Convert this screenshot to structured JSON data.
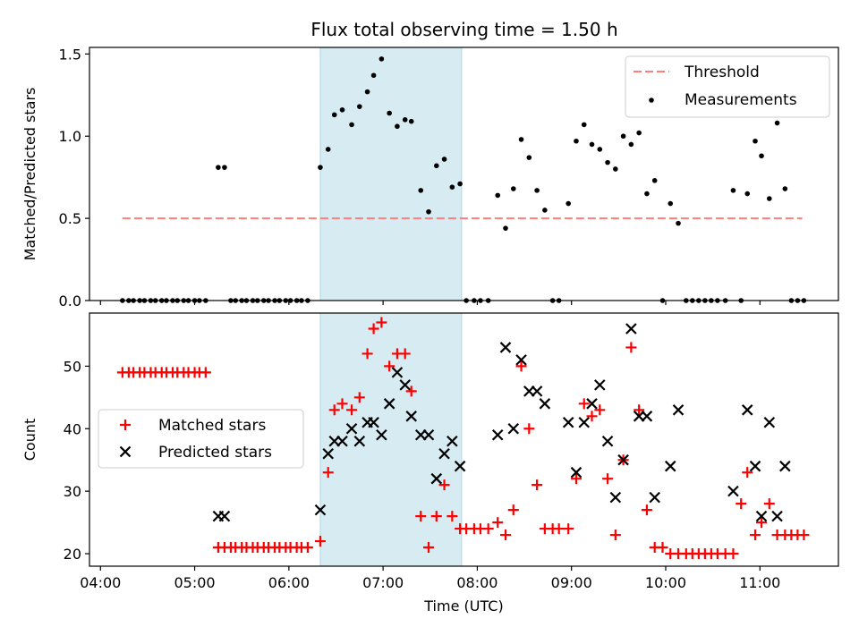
{
  "title": "Flux total observing time = 1.50 h",
  "colors": {
    "threshold": "#ff7f7f",
    "shade": "#add8e6",
    "matched": "#ff0000",
    "predicted": "#000000",
    "measurements": "#000000"
  },
  "chart_data": [
    {
      "type": "scatter",
      "ylabel": "Matched/Predicted stars",
      "xlabel": "",
      "xlim": [
        "03:53",
        "11:50"
      ],
      "ylim": [
        0,
        1.54
      ],
      "yticks": [
        0.0,
        0.5,
        1.0,
        1.5
      ],
      "ytick_labels": [
        "0.0",
        "0.5",
        "1.0",
        "1.5"
      ],
      "xticks": [
        "04:00",
        "05:00",
        "06:00",
        "07:00",
        "08:00",
        "09:00",
        "10:00",
        "11:00"
      ],
      "shaded_interval": [
        "06:20",
        "07:50"
      ],
      "legend_position": "upper right",
      "legend": [
        "Threshold",
        "Measurements"
      ],
      "threshold": {
        "name": "Threshold",
        "y": 0.5,
        "x_range": [
          "04:14",
          "11:27"
        ],
        "style": "dashed"
      },
      "measurements": {
        "name": "Measurements",
        "points": [
          [
            "04:14",
            0
          ],
          [
            "04:18",
            0
          ],
          [
            "04:21",
            0
          ],
          [
            "04:25",
            0
          ],
          [
            "04:28",
            0
          ],
          [
            "04:32",
            0
          ],
          [
            "04:35",
            0
          ],
          [
            "04:39",
            0
          ],
          [
            "04:42",
            0
          ],
          [
            "04:46",
            0
          ],
          [
            "04:49",
            0
          ],
          [
            "04:53",
            0
          ],
          [
            "04:56",
            0
          ],
          [
            "05:00",
            0
          ],
          [
            "05:03",
            0
          ],
          [
            "05:07",
            0
          ],
          [
            "05:15",
            0.81
          ],
          [
            "05:19",
            0.81
          ],
          [
            "05:23",
            0
          ],
          [
            "05:26",
            0
          ],
          [
            "05:30",
            0
          ],
          [
            "05:33",
            0
          ],
          [
            "05:37",
            0
          ],
          [
            "05:40",
            0
          ],
          [
            "05:44",
            0
          ],
          [
            "05:47",
            0
          ],
          [
            "05:51",
            0
          ],
          [
            "05:54",
            0
          ],
          [
            "05:58",
            0
          ],
          [
            "06:01",
            0
          ],
          [
            "06:05",
            0
          ],
          [
            "06:08",
            0
          ],
          [
            "06:12",
            0
          ],
          [
            "06:20",
            0.81
          ],
          [
            "06:25",
            0.92
          ],
          [
            "06:29",
            1.13
          ],
          [
            "06:34",
            1.16
          ],
          [
            "06:40",
            1.07
          ],
          [
            "06:45",
            1.18
          ],
          [
            "06:50",
            1.27
          ],
          [
            "06:54",
            1.37
          ],
          [
            "06:59",
            1.47
          ],
          [
            "07:04",
            1.14
          ],
          [
            "07:09",
            1.06
          ],
          [
            "07:14",
            1.1
          ],
          [
            "07:18",
            1.09
          ],
          [
            "07:24",
            0.67
          ],
          [
            "07:29",
            0.54
          ],
          [
            "07:34",
            0.82
          ],
          [
            "07:39",
            0.86
          ],
          [
            "07:44",
            0.69
          ],
          [
            "07:49",
            0.71
          ],
          [
            "07:53",
            0
          ],
          [
            "07:58",
            0
          ],
          [
            "08:02",
            0
          ],
          [
            "08:07",
            0
          ],
          [
            "08:13",
            0.64
          ],
          [
            "08:18",
            0.44
          ],
          [
            "08:23",
            0.68
          ],
          [
            "08:28",
            0.98
          ],
          [
            "08:33",
            0.87
          ],
          [
            "08:38",
            0.67
          ],
          [
            "08:43",
            0.55
          ],
          [
            "08:48",
            0
          ],
          [
            "08:52",
            0
          ],
          [
            "08:58",
            0.59
          ],
          [
            "09:03",
            0.97
          ],
          [
            "09:08",
            1.07
          ],
          [
            "09:13",
            0.95
          ],
          [
            "09:18",
            0.92
          ],
          [
            "09:23",
            0.84
          ],
          [
            "09:28",
            0.8
          ],
          [
            "09:33",
            1.0
          ],
          [
            "09:38",
            0.95
          ],
          [
            "09:43",
            1.02
          ],
          [
            "09:48",
            0.65
          ],
          [
            "09:53",
            0.73
          ],
          [
            "10:03",
            0.59
          ],
          [
            "10:08",
            0.47
          ],
          [
            "09:58",
            0
          ],
          [
            "10:13",
            0
          ],
          [
            "10:17",
            0
          ],
          [
            "10:21",
            0
          ],
          [
            "10:25",
            0
          ],
          [
            "10:29",
            0
          ],
          [
            "10:33",
            0
          ],
          [
            "10:38",
            0
          ],
          [
            "10:43",
            0.67
          ],
          [
            "10:48",
            0
          ],
          [
            "10:52",
            0.65
          ],
          [
            "10:57",
            0.97
          ],
          [
            "11:01",
            0.88
          ],
          [
            "11:06",
            0.62
          ],
          [
            "11:11",
            1.08
          ],
          [
            "11:16",
            0.68
          ],
          [
            "11:20",
            0
          ],
          [
            "11:24",
            0
          ],
          [
            "11:28",
            0
          ]
        ]
      }
    },
    {
      "type": "scatter",
      "ylabel": "Count",
      "xlabel": "Time (UTC)",
      "xlim": [
        "03:53",
        "11:50"
      ],
      "ylim": [
        18.0,
        58.5
      ],
      "yticks": [
        20,
        30,
        40,
        50
      ],
      "ytick_labels": [
        "20",
        "30",
        "40",
        "50"
      ],
      "xticks": [
        "04:00",
        "05:00",
        "06:00",
        "07:00",
        "08:00",
        "09:00",
        "10:00",
        "11:00"
      ],
      "xtick_labels": [
        "04:00",
        "05:00",
        "06:00",
        "07:00",
        "08:00",
        "09:00",
        "10:00",
        "11:00"
      ],
      "shaded_interval": [
        "06:20",
        "07:50"
      ],
      "legend_position": "center left",
      "legend": [
        "Matched stars",
        "Predicted stars"
      ],
      "series": [
        {
          "name": "Matched stars",
          "marker": "plus",
          "points": [
            [
              "04:14",
              49
            ],
            [
              "04:18",
              49
            ],
            [
              "04:21",
              49
            ],
            [
              "04:25",
              49
            ],
            [
              "04:28",
              49
            ],
            [
              "04:32",
              49
            ],
            [
              "04:35",
              49
            ],
            [
              "04:39",
              49
            ],
            [
              "04:42",
              49
            ],
            [
              "04:46",
              49
            ],
            [
              "04:49",
              49
            ],
            [
              "04:53",
              49
            ],
            [
              "04:56",
              49
            ],
            [
              "05:00",
              49
            ],
            [
              "05:03",
              49
            ],
            [
              "05:07",
              49
            ],
            [
              "05:15",
              21
            ],
            [
              "05:19",
              21
            ],
            [
              "05:23",
              21
            ],
            [
              "05:26",
              21
            ],
            [
              "05:30",
              21
            ],
            [
              "05:33",
              21
            ],
            [
              "05:37",
              21
            ],
            [
              "05:40",
              21
            ],
            [
              "05:44",
              21
            ],
            [
              "05:47",
              21
            ],
            [
              "05:51",
              21
            ],
            [
              "05:54",
              21
            ],
            [
              "05:58",
              21
            ],
            [
              "06:01",
              21
            ],
            [
              "06:05",
              21
            ],
            [
              "06:08",
              21
            ],
            [
              "06:12",
              21
            ],
            [
              "06:20",
              22
            ],
            [
              "06:25",
              33
            ],
            [
              "06:29",
              43
            ],
            [
              "06:34",
              44
            ],
            [
              "06:40",
              43
            ],
            [
              "06:45",
              45
            ],
            [
              "06:50",
              52
            ],
            [
              "06:54",
              56
            ],
            [
              "06:59",
              57
            ],
            [
              "07:04",
              50
            ],
            [
              "07:09",
              52
            ],
            [
              "07:14",
              52
            ],
            [
              "07:18",
              46
            ],
            [
              "07:24",
              26
            ],
            [
              "07:29",
              21
            ],
            [
              "07:34",
              26
            ],
            [
              "07:39",
              31
            ],
            [
              "07:44",
              26
            ],
            [
              "07:49",
              24
            ],
            [
              "07:53",
              24
            ],
            [
              "07:58",
              24
            ],
            [
              "08:02",
              24
            ],
            [
              "08:07",
              24
            ],
            [
              "08:13",
              25
            ],
            [
              "08:18",
              23
            ],
            [
              "08:23",
              27
            ],
            [
              "08:28",
              50
            ],
            [
              "08:33",
              40
            ],
            [
              "08:38",
              31
            ],
            [
              "08:43",
              24
            ],
            [
              "08:48",
              24
            ],
            [
              "08:52",
              24
            ],
            [
              "08:58",
              24
            ],
            [
              "09:03",
              32
            ],
            [
              "09:08",
              44
            ],
            [
              "09:13",
              42
            ],
            [
              "09:18",
              43
            ],
            [
              "09:23",
              32
            ],
            [
              "09:28",
              23
            ],
            [
              "09:33",
              35
            ],
            [
              "09:38",
              53
            ],
            [
              "09:43",
              43
            ],
            [
              "09:48",
              27
            ],
            [
              "09:53",
              21
            ],
            [
              "09:58",
              21
            ],
            [
              "10:03",
              20
            ],
            [
              "10:08",
              20
            ],
            [
              "10:13",
              20
            ],
            [
              "10:17",
              20
            ],
            [
              "10:21",
              20
            ],
            [
              "10:25",
              20
            ],
            [
              "10:29",
              20
            ],
            [
              "10:33",
              20
            ],
            [
              "10:38",
              20
            ],
            [
              "10:43",
              20
            ],
            [
              "10:48",
              28
            ],
            [
              "10:52",
              33
            ],
            [
              "10:57",
              23
            ],
            [
              "11:01",
              25
            ],
            [
              "11:06",
              28
            ],
            [
              "11:11",
              23
            ],
            [
              "11:16",
              23
            ],
            [
              "11:20",
              23
            ],
            [
              "11:24",
              23
            ],
            [
              "11:28",
              23
            ]
          ]
        },
        {
          "name": "Predicted stars",
          "marker": "x",
          "points": [
            [
              "05:15",
              26
            ],
            [
              "05:19",
              26
            ],
            [
              "06:20",
              27
            ],
            [
              "06:25",
              36
            ],
            [
              "06:29",
              38
            ],
            [
              "06:34",
              38
            ],
            [
              "06:40",
              40
            ],
            [
              "06:45",
              38
            ],
            [
              "06:50",
              41
            ],
            [
              "06:54",
              41
            ],
            [
              "06:59",
              39
            ],
            [
              "07:04",
              44
            ],
            [
              "07:09",
              49
            ],
            [
              "07:14",
              47
            ],
            [
              "07:18",
              42
            ],
            [
              "07:24",
              39
            ],
            [
              "07:29",
              39
            ],
            [
              "07:34",
              32
            ],
            [
              "07:39",
              36
            ],
            [
              "07:44",
              38
            ],
            [
              "07:49",
              34
            ],
            [
              "08:13",
              39
            ],
            [
              "08:18",
              53
            ],
            [
              "08:23",
              40
            ],
            [
              "08:28",
              51
            ],
            [
              "08:33",
              46
            ],
            [
              "08:38",
              46
            ],
            [
              "08:43",
              44
            ],
            [
              "08:58",
              41
            ],
            [
              "09:03",
              33
            ],
            [
              "09:08",
              41
            ],
            [
              "09:13",
              44
            ],
            [
              "09:18",
              47
            ],
            [
              "09:23",
              38
            ],
            [
              "09:28",
              29
            ],
            [
              "09:33",
              35
            ],
            [
              "09:38",
              56
            ],
            [
              "09:43",
              42
            ],
            [
              "09:48",
              42
            ],
            [
              "09:53",
              29
            ],
            [
              "10:03",
              34
            ],
            [
              "10:08",
              43
            ],
            [
              "10:43",
              30
            ],
            [
              "10:52",
              43
            ],
            [
              "10:57",
              34
            ],
            [
              "11:01",
              26
            ],
            [
              "11:06",
              41
            ],
            [
              "11:11",
              26
            ],
            [
              "11:16",
              34
            ]
          ]
        }
      ]
    }
  ]
}
